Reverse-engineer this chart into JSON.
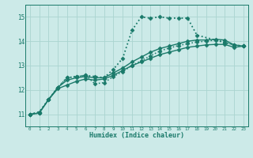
{
  "xlabel": "Humidex (Indice chaleur)",
  "xlim": [
    -0.5,
    23.5
  ],
  "ylim": [
    10.5,
    15.5
  ],
  "yticks": [
    11,
    12,
    13,
    14,
    15
  ],
  "xticks": [
    0,
    1,
    2,
    3,
    4,
    5,
    6,
    7,
    8,
    9,
    10,
    11,
    12,
    13,
    14,
    15,
    16,
    17,
    18,
    19,
    20,
    21,
    22,
    23
  ],
  "bg_color": "#cceae8",
  "grid_color": "#aad4d0",
  "line_color": "#1a7a6a",
  "lines": [
    {
      "x": [
        0,
        1,
        2,
        3,
        4,
        5,
        6,
        7,
        8,
        9,
        10,
        11,
        12,
        13,
        14,
        15,
        16,
        17,
        18,
        21,
        22,
        23
      ],
      "y": [
        11.0,
        11.1,
        11.6,
        12.1,
        12.5,
        12.55,
        12.6,
        12.55,
        12.5,
        12.85,
        13.3,
        14.45,
        15.0,
        14.95,
        15.0,
        14.95,
        14.95,
        14.95,
        14.25,
        13.95,
        13.85,
        13.8
      ],
      "marker": "D",
      "markersize": 2.5,
      "linestyle": ":",
      "linewidth": 1.3
    },
    {
      "x": [
        0,
        1,
        2,
        3,
        4,
        5,
        6,
        7,
        8,
        9,
        10,
        11,
        12,
        13,
        14,
        15,
        16,
        17,
        18,
        19,
        20,
        21,
        22,
        23
      ],
      "y": [
        11.0,
        11.05,
        11.6,
        12.05,
        12.2,
        12.35,
        12.45,
        12.4,
        12.45,
        12.6,
        12.8,
        13.0,
        13.15,
        13.3,
        13.45,
        13.55,
        13.65,
        13.75,
        13.8,
        13.85,
        13.87,
        13.87,
        13.75,
        13.8
      ],
      "marker": "D",
      "markersize": 2.5,
      "linestyle": "-",
      "linewidth": 1.0
    },
    {
      "x": [
        0,
        1,
        2,
        3,
        4,
        5,
        6,
        7,
        8,
        9,
        10,
        11,
        12,
        13,
        14,
        15,
        16,
        17,
        18,
        19,
        20,
        21,
        22,
        23
      ],
      "y": [
        11.0,
        11.05,
        11.6,
        12.1,
        12.4,
        12.5,
        12.55,
        12.5,
        12.5,
        12.7,
        12.9,
        13.15,
        13.35,
        13.55,
        13.7,
        13.8,
        13.9,
        14.0,
        14.05,
        14.05,
        14.08,
        14.05,
        13.85,
        13.8
      ],
      "marker": "D",
      "markersize": 2.5,
      "linestyle": "-",
      "linewidth": 1.0
    },
    {
      "x": [
        0,
        1,
        2,
        3,
        4,
        5,
        6,
        7,
        8,
        9,
        10,
        11,
        12,
        13,
        14,
        15,
        16,
        17,
        18,
        19,
        20,
        21,
        22,
        23
      ],
      "y": [
        11.0,
        11.05,
        11.6,
        12.1,
        12.5,
        12.55,
        12.6,
        12.25,
        12.3,
        12.55,
        12.75,
        13.0,
        13.2,
        13.4,
        13.6,
        13.72,
        13.82,
        13.9,
        13.97,
        14.0,
        14.05,
        13.95,
        13.85,
        13.8
      ],
      "marker": "D",
      "markersize": 2.5,
      "linestyle": ":",
      "linewidth": 1.1
    }
  ]
}
